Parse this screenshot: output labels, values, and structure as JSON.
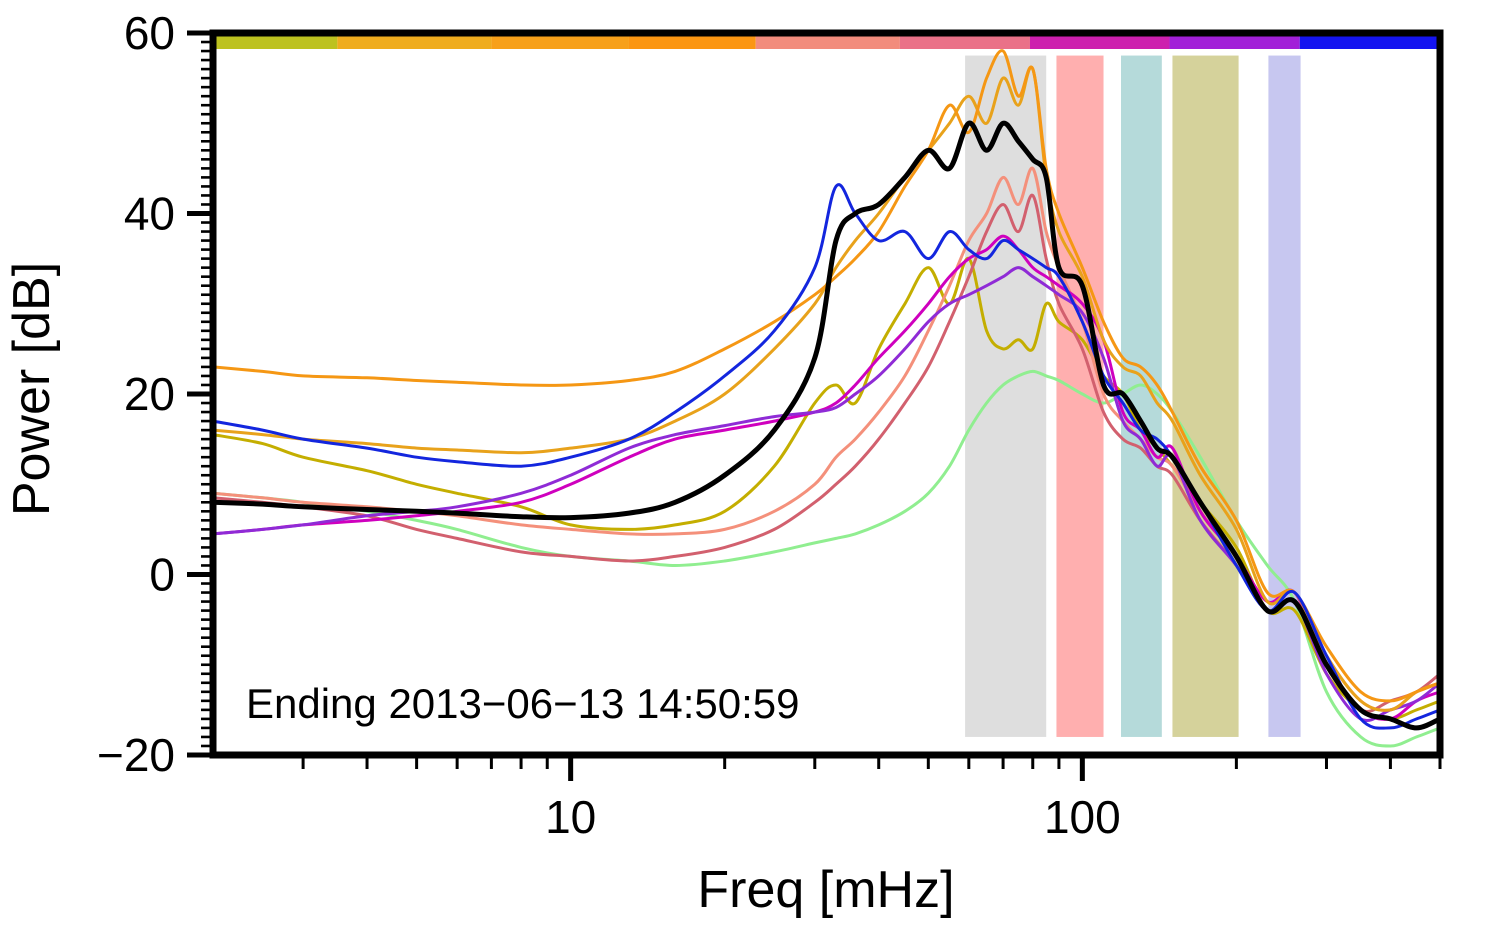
{
  "chart_data": {
    "type": "line",
    "title": "",
    "xlabel": "Freq [mHz]",
    "ylabel": "Power [dB]",
    "annotation": "Ending 2013−06−13 14:50:59",
    "x_scale": "log",
    "xlim": [
      2,
      500
    ],
    "ylim": [
      -20,
      60
    ],
    "grid": false,
    "legend": "none",
    "background": "#ffffff",
    "x_ticks": {
      "major": [
        10,
        100
      ],
      "major_labels": [
        "10",
        "100"
      ],
      "minor": [
        3,
        4,
        5,
        6,
        7,
        8,
        9,
        20,
        30,
        40,
        50,
        60,
        70,
        80,
        90,
        200,
        300,
        400,
        500
      ]
    },
    "y_ticks": {
      "major": [
        -20,
        0,
        20,
        40,
        60
      ],
      "major_labels": [
        "−20",
        "0",
        "20",
        "40",
        "60"
      ],
      "minor_step": 1
    },
    "x": [
      2,
      2.5,
      3,
      4,
      5,
      6,
      8,
      10,
      13,
      16,
      20,
      25,
      30,
      33,
      36,
      40,
      45,
      50,
      55,
      60,
      65,
      70,
      75,
      80,
      85,
      90,
      100,
      110,
      120,
      130,
      140,
      150,
      170,
      200,
      230,
      260,
      300,
      350,
      400,
      450,
      500
    ],
    "series": [
      {
        "name": "green",
        "color": "#90EE90",
        "width": 3,
        "values": [
          9,
          8.5,
          8,
          7,
          6,
          5,
          3,
          2,
          1.5,
          1,
          1.5,
          2.5,
          3.5,
          4,
          4.5,
          5.5,
          7,
          9,
          12,
          16,
          19,
          21,
          22,
          22.5,
          22,
          21.5,
          20,
          19,
          20,
          21,
          20,
          18,
          13,
          6,
          1,
          -3,
          -13,
          -18,
          -19,
          -18,
          -17
        ]
      },
      {
        "name": "olive",
        "color": "#C4AE00",
        "width": 3,
        "values": [
          15.5,
          14.5,
          13,
          11.5,
          10,
          9,
          7.5,
          5.5,
          5,
          5.5,
          7,
          12,
          19,
          21,
          19,
          25,
          30,
          34,
          30,
          35,
          27,
          25,
          26,
          25,
          30,
          28,
          26,
          22,
          20,
          16,
          14,
          12,
          8,
          3,
          -4,
          -4,
          -11,
          -15,
          -16,
          -15,
          -14
        ]
      },
      {
        "name": "salmon",
        "color": "#F4907B",
        "width": 3,
        "values": [
          9,
          8.5,
          8,
          7.5,
          7,
          6.5,
          5.5,
          5,
          4.5,
          4.5,
          5,
          7,
          10,
          13,
          15,
          18,
          22,
          27,
          32,
          37,
          40,
          44,
          41,
          45,
          38,
          34,
          28,
          20,
          17,
          15,
          13,
          12,
          7,
          2,
          -3,
          -2,
          -9,
          -14,
          -15,
          -13,
          -12
        ]
      },
      {
        "name": "rose",
        "color": "#D2606E",
        "width": 3,
        "values": [
          8.5,
          8,
          7.5,
          6.5,
          5,
          4,
          2.5,
          2,
          1.5,
          2,
          3,
          5,
          8,
          10,
          12,
          15,
          19,
          23,
          28,
          33,
          38,
          41,
          38,
          42,
          35,
          30,
          25,
          18,
          15,
          14,
          12,
          11,
          6,
          1,
          -4,
          -3,
          -10,
          -15,
          -14,
          -13,
          -11
        ]
      },
      {
        "name": "magenta",
        "color": "#CF00BE",
        "width": 3,
        "values": [
          4.5,
          5,
          5.5,
          6,
          6.5,
          7,
          8,
          10,
          13,
          15,
          16,
          17,
          18,
          19,
          21,
          24,
          27,
          30,
          33,
          35,
          36,
          37.5,
          36,
          34,
          33,
          32,
          30,
          26,
          18,
          16,
          13,
          14,
          7,
          2,
          -3,
          -2,
          -10,
          -15,
          -16,
          -14,
          -13
        ]
      },
      {
        "name": "purple",
        "color": "#8F2BD6",
        "width": 3,
        "values": [
          4.5,
          5,
          5.5,
          6.5,
          7,
          7.5,
          9,
          11,
          14,
          15.5,
          16.5,
          17.5,
          18,
          18.5,
          20,
          22,
          25,
          28,
          30,
          31,
          32,
          33,
          34,
          33,
          32,
          31,
          29,
          24,
          17,
          15,
          12,
          13,
          6,
          1,
          -4,
          -3,
          -11,
          -16,
          -15,
          -14,
          -12
        ]
      },
      {
        "name": "orange-lower",
        "color": "#E8A21B",
        "width": 3,
        "values": [
          16,
          15.5,
          15,
          14.5,
          14,
          13.8,
          13.5,
          14,
          15,
          17,
          20,
          25,
          30,
          34,
          37,
          40,
          44,
          47,
          50,
          53,
          50,
          55,
          52,
          56,
          44,
          38,
          33,
          26,
          23,
          22,
          19,
          17,
          11,
          5,
          -3,
          -2,
          -9,
          -14,
          -15,
          -13,
          -12
        ]
      },
      {
        "name": "orange-upper",
        "color": "#F59714",
        "width": 3,
        "values": [
          23,
          22.5,
          22,
          21.8,
          21.5,
          21.3,
          21,
          21,
          21.5,
          22.5,
          25,
          28,
          31,
          33,
          35,
          38,
          43,
          47,
          52,
          49,
          55,
          58,
          53,
          56,
          45,
          40,
          34,
          28,
          24,
          23,
          21,
          18,
          12,
          6,
          -2,
          -2,
          -8,
          -13,
          -14,
          -13,
          -12
        ]
      },
      {
        "name": "blue",
        "color": "#1326DE",
        "width": 3,
        "values": [
          17,
          16,
          15,
          14,
          13,
          12.5,
          12,
          13,
          15,
          18,
          22,
          27,
          34,
          43,
          40,
          37,
          38,
          35,
          38,
          36,
          35,
          37,
          36,
          35,
          34,
          33,
          28,
          22,
          19,
          16,
          15,
          13,
          8,
          1,
          -4,
          -2,
          -9,
          -16,
          -17,
          -16,
          -15
        ]
      },
      {
        "name": "black",
        "color": "#000000",
        "width": 5,
        "values": [
          8,
          7.8,
          7.5,
          7.2,
          7,
          6.8,
          6.4,
          6.3,
          6.8,
          8,
          11,
          16,
          24,
          37,
          40,
          41,
          44,
          47,
          45,
          50,
          47,
          50,
          48,
          46,
          44,
          34,
          32,
          21,
          20,
          17,
          14,
          13,
          8,
          2,
          -4,
          -3,
          -10,
          -15,
          -16,
          -17,
          -16
        ]
      }
    ],
    "bands": [
      {
        "from": 59,
        "to": 85,
        "top": 57.5,
        "bottom": -18,
        "color": "#DEDEDE"
      },
      {
        "from": 89,
        "to": 110,
        "top": 57.5,
        "bottom": -18,
        "color": "#FFAFAF"
      },
      {
        "from": 119,
        "to": 143,
        "top": 57.5,
        "bottom": -18,
        "color": "#B5DADA"
      },
      {
        "from": 150,
        "to": 202,
        "top": 57.5,
        "bottom": -18,
        "color": "#D5D29B"
      },
      {
        "from": 231,
        "to": 267,
        "top": 57.5,
        "bottom": -18,
        "color": "#C7C7F0"
      }
    ],
    "top_bar": [
      {
        "from": 2,
        "to": 3.5,
        "color": "#BDC21F"
      },
      {
        "from": 3.5,
        "to": 7,
        "color": "#EFAC1E"
      },
      {
        "from": 7,
        "to": 13,
        "color": "#F7A01A"
      },
      {
        "from": 13,
        "to": 23,
        "color": "#FB9612"
      },
      {
        "from": 23,
        "to": 44,
        "color": "#F28C7C"
      },
      {
        "from": 44,
        "to": 79,
        "color": "#EA7188"
      },
      {
        "from": 79,
        "to": 148,
        "color": "#CD1FAE"
      },
      {
        "from": 148,
        "to": 266,
        "color": "#A21FD8"
      },
      {
        "from": 266,
        "to": 500,
        "color": "#1414F0"
      }
    ]
  }
}
